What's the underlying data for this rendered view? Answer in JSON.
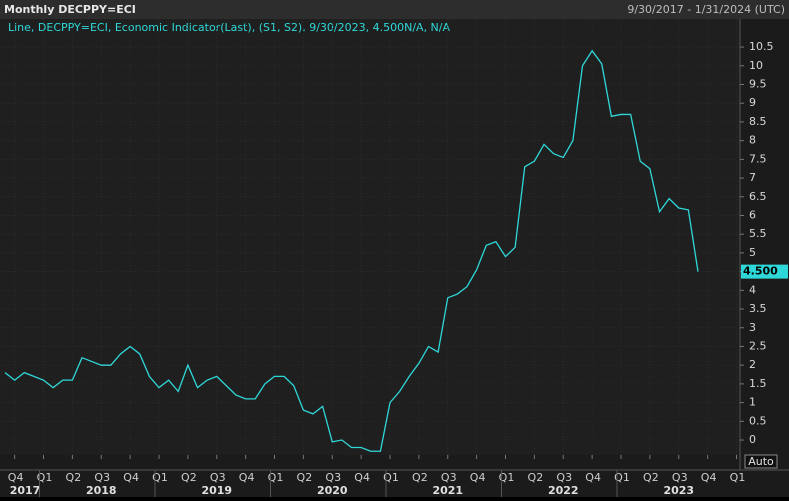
{
  "chart_data": {
    "type": "line",
    "title": "Monthly DECPPY=ECI",
    "date_range": "9/30/2017 - 1/31/2024 (UTC)",
    "button": "Auto",
    "series": [
      {
        "name": "Line, DECPPY=ECI, Economic Indicator(Last), (S1, S2), 9/30/2023, 4.500N/A, N/A",
        "color": "#2fd8d8",
        "values": [
          1.8,
          1.6,
          1.8,
          1.7,
          1.6,
          1.4,
          1.6,
          1.6,
          2.2,
          2.1,
          2.0,
          2.0,
          2.3,
          2.5,
          2.3,
          1.7,
          1.4,
          1.6,
          1.3,
          2.0,
          1.4,
          1.6,
          1.7,
          1.45,
          1.2,
          1.1,
          1.1,
          1.5,
          1.7,
          1.7,
          1.45,
          0.8,
          0.7,
          0.9,
          -0.05,
          0.0,
          -0.2,
          -0.2,
          -0.3,
          -0.3,
          1.0,
          1.3,
          1.7,
          2.05,
          2.5,
          2.35,
          3.8,
          3.9,
          4.1,
          4.55,
          5.2,
          5.3,
          4.9,
          5.15,
          7.3,
          7.45,
          7.9,
          7.65,
          7.55,
          8.0,
          10.0,
          10.4,
          10.05,
          8.65,
          8.7,
          8.7,
          7.45,
          7.25,
          6.1,
          6.45,
          6.2,
          6.15,
          4.5
        ]
      }
    ],
    "last_value": {
      "value": 4.5,
      "label": "4.500"
    },
    "x_tick_labels": [
      "Q4",
      "Q1",
      "Q2",
      "Q3",
      "Q4",
      "Q1",
      "Q2",
      "Q3",
      "Q4",
      "Q1",
      "Q2",
      "Q3",
      "Q4",
      "Q1",
      "Q2",
      "Q3",
      "Q4",
      "Q1",
      "Q2",
      "Q3",
      "Q4",
      "Q1",
      "Q2",
      "Q3",
      "Q4",
      "Q1"
    ],
    "year_labels": [
      "2017",
      "2018",
      "2019",
      "2020",
      "2021",
      "2022",
      "2023"
    ],
    "ylim": [
      -0.4,
      11.25
    ],
    "yticks": [
      0,
      0.5,
      1,
      1.5,
      2,
      2.5,
      3,
      3.5,
      4,
      4.5,
      5,
      5.5,
      6,
      6.5,
      7,
      7.5,
      8,
      8.5,
      9,
      9.5,
      10,
      10.5
    ],
    "grid": true
  }
}
